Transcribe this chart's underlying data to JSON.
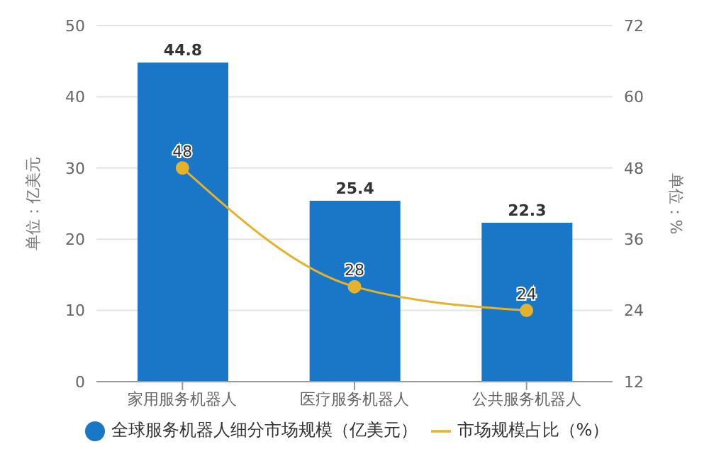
{
  "chart_data": {
    "type": "bar",
    "categories": [
      "家用服务机器人",
      "医疗服务机器人",
      "公共服务机器人"
    ],
    "series": [
      {
        "name": "全球服务机器人细分市场规模（亿美元）",
        "color": "#1a76c6",
        "values": [
          44.8,
          25.4,
          22.3
        ]
      },
      {
        "name": "市场规模占比（%）",
        "type": "line",
        "axis": "y2",
        "color": "#e5b22b",
        "values": [
          48,
          28,
          24
        ]
      }
    ],
    "ylabel": "单位：亿美元",
    "y2label": "单位：%",
    "ylim": [
      0,
      50
    ],
    "yticks": [
      0,
      10,
      20,
      30,
      40,
      50
    ],
    "y2lim": [
      12,
      72
    ],
    "y2ticks": [
      12,
      24,
      36,
      48,
      60,
      72
    ],
    "grid": "y",
    "legend": "bottom",
    "data_labels": true,
    "marker": "circle"
  }
}
